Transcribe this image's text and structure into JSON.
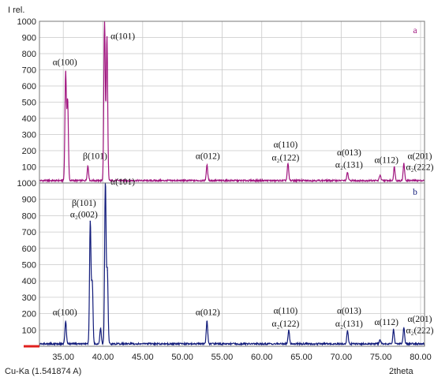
{
  "colors": {
    "pattern_a": "#a0157f",
    "pattern_b": "#111b7a",
    "axis_marker": "#e0201e",
    "grid": "#c9c9c9"
  },
  "chart_data": {
    "type": "line",
    "y_axis_label": "I rel.",
    "x_axis_label": "2theta",
    "radiation_label": "Cu-Ka (1.541874 A)",
    "xlim": [
      32.0,
      80.5
    ],
    "x_tick_labels": [
      "35.00",
      "40.00",
      "45.00",
      "50.00",
      "55.00",
      "60.00",
      "65.00",
      "70.00",
      "75.00",
      "80.00"
    ],
    "x_ticks": [
      35,
      40,
      45,
      50,
      55,
      60,
      65,
      70,
      75,
      80
    ],
    "grid": true,
    "panels": [
      {
        "name": "a",
        "color": "#a0157f",
        "ylim": [
          0,
          1000
        ],
        "y_tick_labels": [
          "100",
          "200",
          "300",
          "400",
          "500",
          "600",
          "700",
          "800",
          "900",
          "1000"
        ],
        "y_ticks": [
          100,
          200,
          300,
          400,
          500,
          600,
          700,
          800,
          900,
          1000
        ],
        "background": 15,
        "peaks": [
          {
            "x": 35.3,
            "y": 670
          },
          {
            "x": 35.55,
            "y": 500
          },
          {
            "x": 38.1,
            "y": 90
          },
          {
            "x": 40.2,
            "y": 1000
          },
          {
            "x": 40.5,
            "y": 890
          },
          {
            "x": 53.1,
            "y": 95
          },
          {
            "x": 63.3,
            "y": 105
          },
          {
            "x": 70.8,
            "y": 50
          },
          {
            "x": 74.9,
            "y": 35
          },
          {
            "x": 76.7,
            "y": 85
          },
          {
            "x": 77.9,
            "y": 105
          }
        ],
        "annotations": [
          {
            "text": "α(100)",
            "x": 35.2,
            "y": 730
          },
          {
            "text": "β(101)",
            "x": 39.0,
            "y": 150
          },
          {
            "text": "α(101)",
            "x": 42.5,
            "y": 890
          },
          {
            "text": "α(012)",
            "x": 53.2,
            "y": 150
          },
          {
            "text": "α(110)",
            "x": 63.0,
            "y": 220
          },
          {
            "text": "α₂(122)",
            "x": 63.0,
            "y": 140
          },
          {
            "text": "α(013)",
            "x": 71.0,
            "y": 170
          },
          {
            "text": "α₂(131)",
            "x": 71.0,
            "y": 95
          },
          {
            "text": "α(112)",
            "x": 75.7,
            "y": 125
          },
          {
            "text": "α(201)",
            "x": 79.9,
            "y": 150
          },
          {
            "text": "α₂(222)",
            "x": 79.9,
            "y": 80
          }
        ],
        "panel_label": "a"
      },
      {
        "name": "b",
        "color": "#111b7a",
        "ylim": [
          0,
          1000
        ],
        "y_tick_labels": [
          "100",
          "200",
          "300",
          "400",
          "500",
          "600",
          "700",
          "800",
          "900",
          "1000"
        ],
        "y_ticks": [
          100,
          200,
          300,
          400,
          500,
          600,
          700,
          800,
          900,
          1000
        ],
        "background": 15,
        "peaks": [
          {
            "x": 35.3,
            "y": 140
          },
          {
            "x": 38.4,
            "y": 750
          },
          {
            "x": 38.65,
            "y": 380
          },
          {
            "x": 39.7,
            "y": 95
          },
          {
            "x": 40.3,
            "y": 1000
          },
          {
            "x": 40.55,
            "y": 450
          },
          {
            "x": 53.1,
            "y": 140
          },
          {
            "x": 63.4,
            "y": 85
          },
          {
            "x": 70.8,
            "y": 80
          },
          {
            "x": 74.9,
            "y": 25
          },
          {
            "x": 76.6,
            "y": 90
          },
          {
            "x": 77.9,
            "y": 100
          }
        ],
        "annotations": [
          {
            "text": "α(100)",
            "x": 35.2,
            "y": 190
          },
          {
            "text": "β(101)",
            "x": 37.6,
            "y": 860
          },
          {
            "text": "α₂(002)",
            "x": 37.6,
            "y": 790
          },
          {
            "text": "α(101)",
            "x": 42.5,
            "y": 990
          },
          {
            "text": "α(012)",
            "x": 53.2,
            "y": 190
          },
          {
            "text": "α(110)",
            "x": 63.0,
            "y": 200
          },
          {
            "text": "α₂(122)",
            "x": 63.0,
            "y": 120
          },
          {
            "text": "α(013)",
            "x": 71.0,
            "y": 200
          },
          {
            "text": "α₂(131)",
            "x": 71.0,
            "y": 120
          },
          {
            "text": "α(112)",
            "x": 75.7,
            "y": 130
          },
          {
            "text": "α(201)",
            "x": 79.9,
            "y": 150
          },
          {
            "text": "α₂(222)",
            "x": 79.9,
            "y": 80
          }
        ],
        "panel_label": "b"
      }
    ]
  }
}
